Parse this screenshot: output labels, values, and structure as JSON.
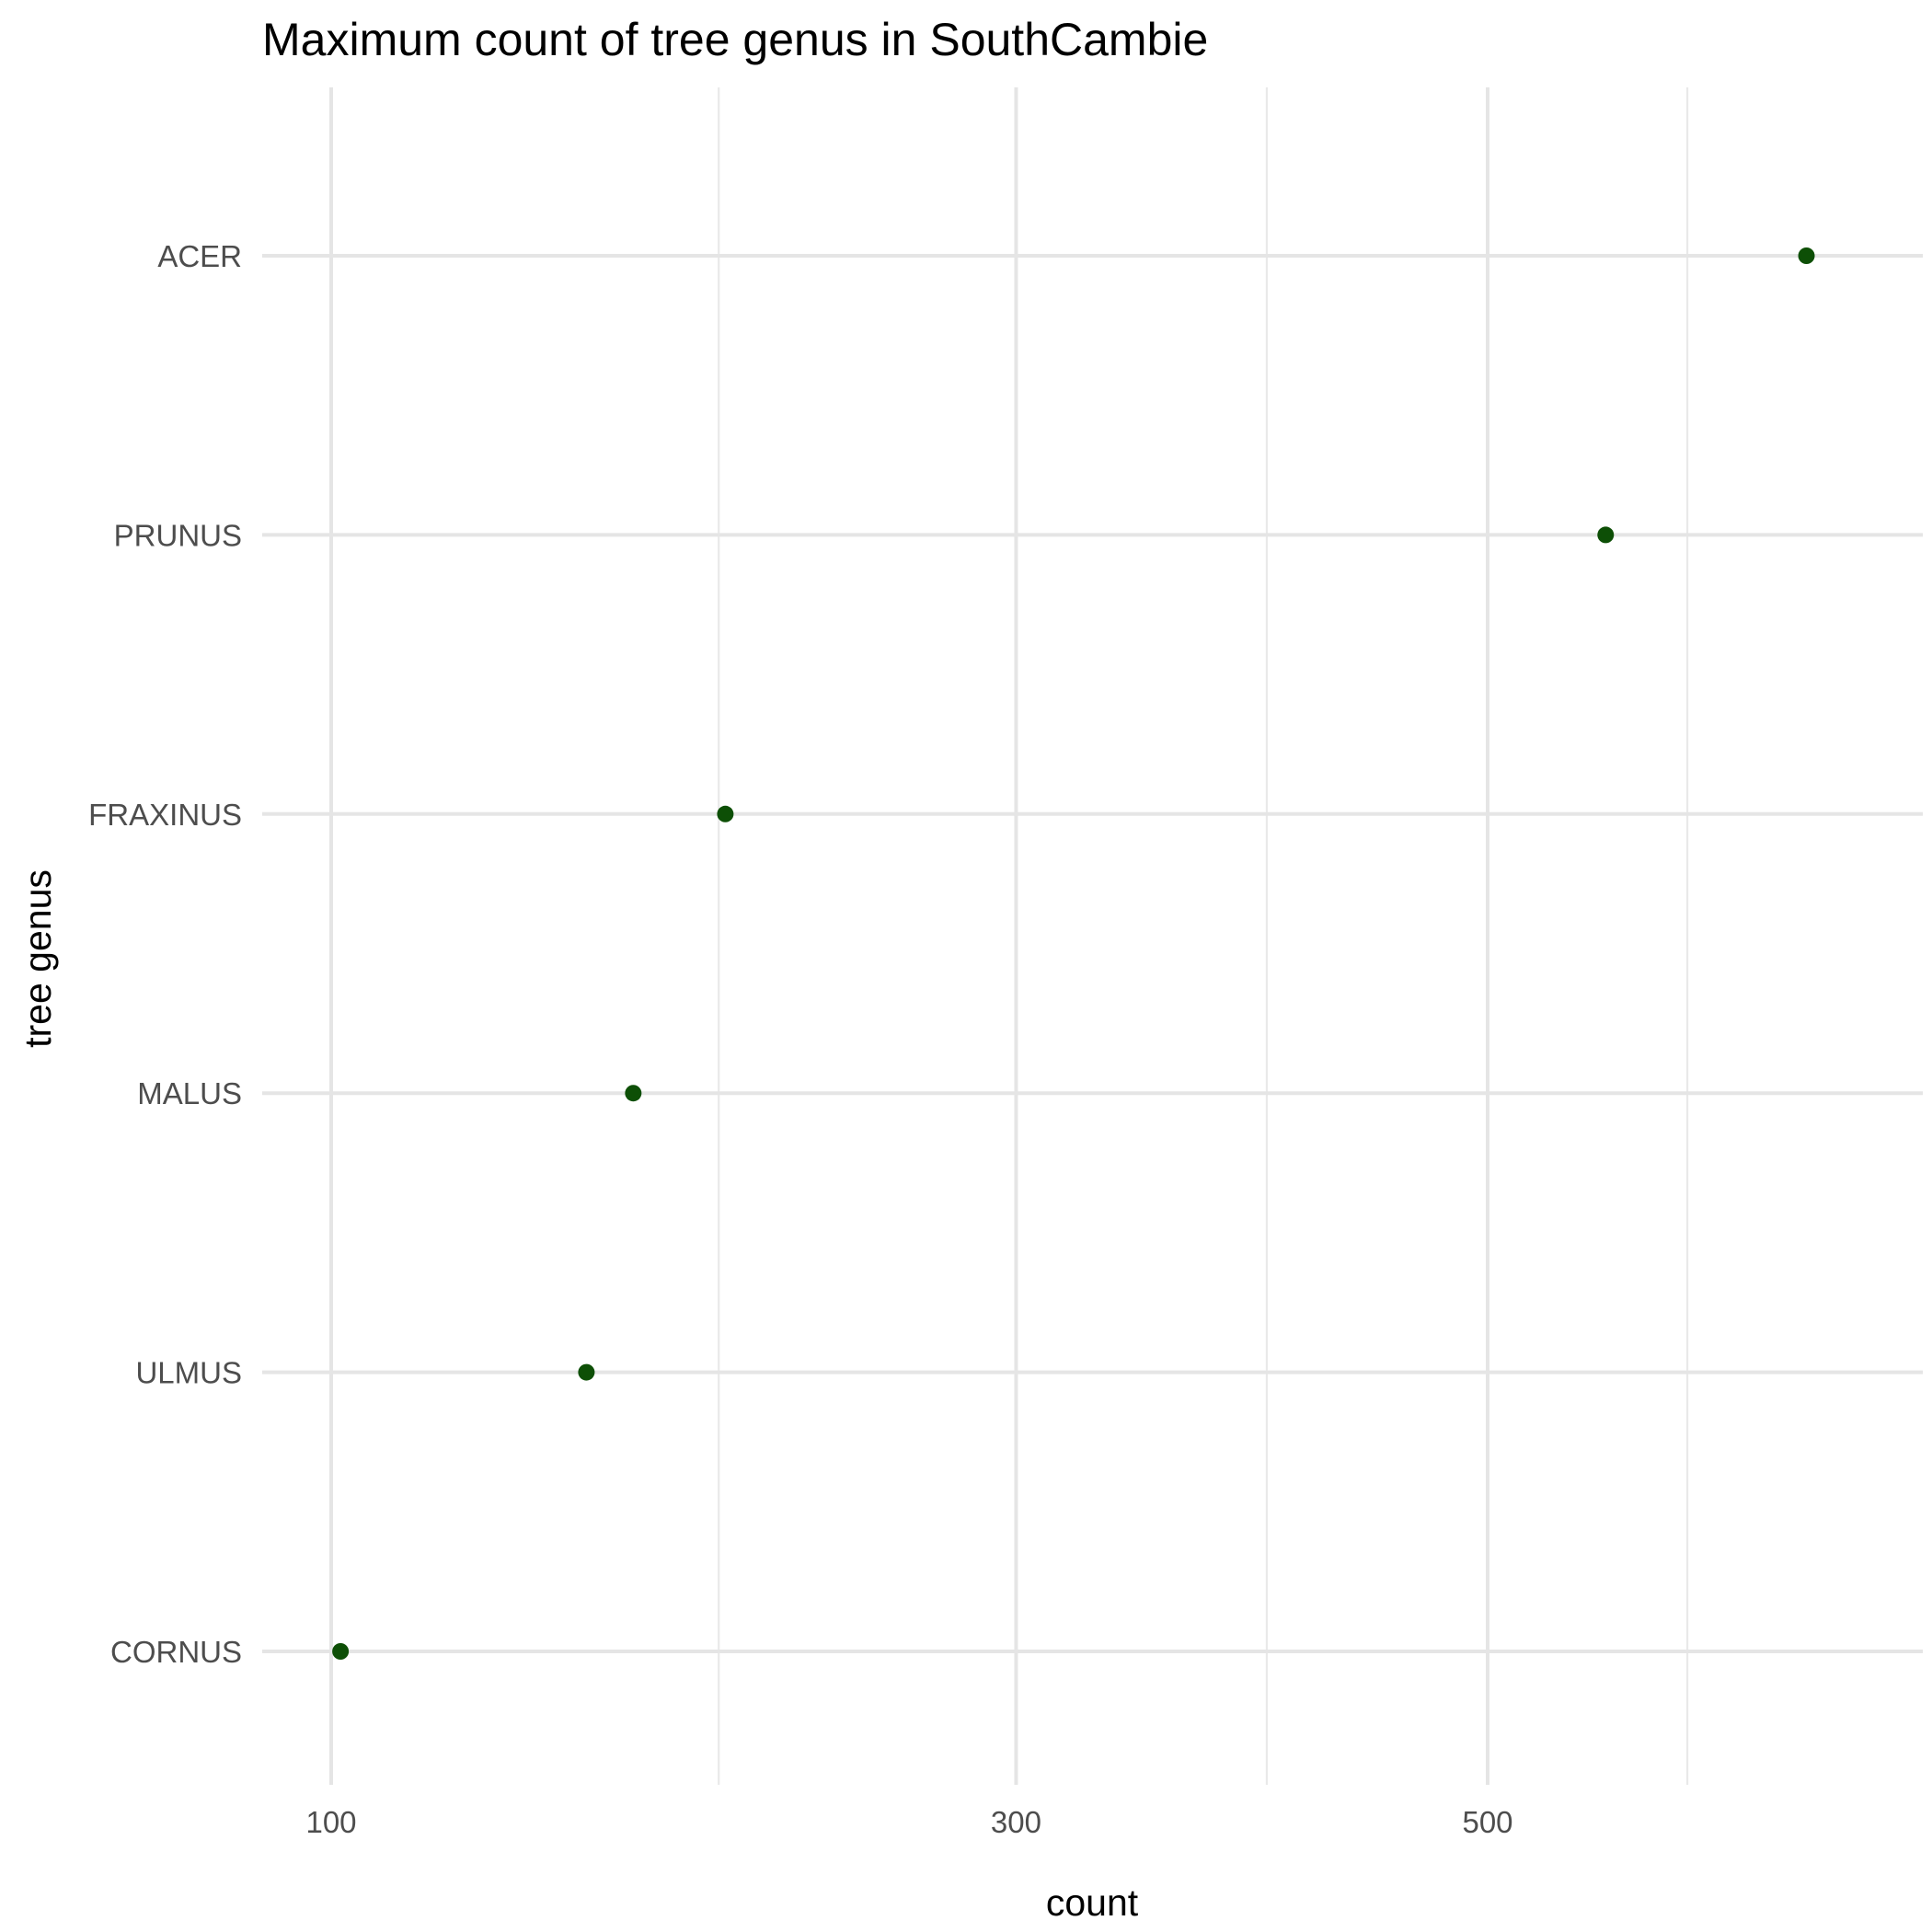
{
  "chart_data": {
    "type": "scatter",
    "title": "Maximum count of tree genus in SouthCambie",
    "xlabel": "count",
    "ylabel": "tree genus",
    "x_scale": "sqrt",
    "xlim": [
      70,
      860
    ],
    "x_ticks": [
      100,
      300,
      500
    ],
    "x_minor_ticks": [
      200,
      400,
      600
    ],
    "x_tick_labels": [
      "100",
      "300",
      "500"
    ],
    "categories": [
      "CORNUS",
      "ULMUS",
      "MALUS",
      "FRAXINUS",
      "PRUNUS",
      "ACER"
    ],
    "values": [
      102,
      162,
      175,
      202,
      558,
      664
    ],
    "grid": true,
    "legend": "none",
    "point_color": "#0d4f06"
  }
}
